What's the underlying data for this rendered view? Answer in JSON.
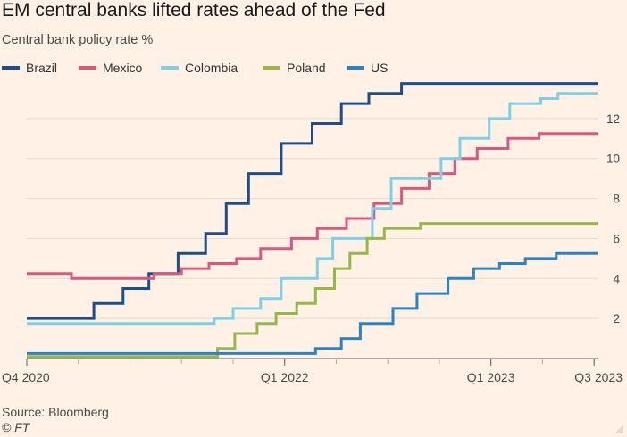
{
  "chart_data": {
    "type": "line",
    "title": "EM central banks lifted rates ahead of the Fed",
    "subtitle": "Central bank policy rate %",
    "xlabel": "",
    "ylabel": "",
    "ylim": [
      0,
      13.6
    ],
    "y_ticks": [
      2,
      4,
      6,
      8,
      10,
      12
    ],
    "x_ticks": [
      {
        "label": "Q4 2020",
        "t": 0
      },
      {
        "label": "Q1 2022",
        "t": 15
      },
      {
        "label": "Q1 2023",
        "t": 27
      },
      {
        "label": "Q3 2023",
        "t": 33
      }
    ],
    "xlim": [
      0,
      33.2
    ],
    "x_unit": "months since Oct 2020",
    "series": [
      {
        "name": "Brazil",
        "color": "#1e4d8c",
        "points": [
          [
            0,
            2.0
          ],
          [
            3.9,
            2.0
          ],
          [
            3.9,
            2.75
          ],
          [
            5.6,
            2.75
          ],
          [
            5.6,
            3.5
          ],
          [
            7.1,
            3.5
          ],
          [
            7.1,
            4.25
          ],
          [
            8.8,
            4.25
          ],
          [
            8.8,
            5.25
          ],
          [
            10.4,
            5.25
          ],
          [
            10.4,
            6.25
          ],
          [
            11.6,
            6.25
          ],
          [
            11.6,
            7.75
          ],
          [
            12.9,
            7.75
          ],
          [
            12.9,
            9.25
          ],
          [
            14.8,
            9.25
          ],
          [
            14.8,
            10.75
          ],
          [
            16.6,
            10.75
          ],
          [
            16.6,
            11.75
          ],
          [
            18.3,
            11.75
          ],
          [
            18.3,
            12.75
          ],
          [
            19.9,
            12.75
          ],
          [
            19.9,
            13.25
          ],
          [
            21.8,
            13.25
          ],
          [
            21.8,
            13.75
          ],
          [
            33.2,
            13.75
          ]
        ]
      },
      {
        "name": "Mexico",
        "color": "#d9587e",
        "points": [
          [
            0,
            4.25
          ],
          [
            2.6,
            4.25
          ],
          [
            2.6,
            4.0
          ],
          [
            7.4,
            4.0
          ],
          [
            7.4,
            4.25
          ],
          [
            9.0,
            4.25
          ],
          [
            9.0,
            4.5
          ],
          [
            10.6,
            4.5
          ],
          [
            10.6,
            4.75
          ],
          [
            12.2,
            4.75
          ],
          [
            12.2,
            5.0
          ],
          [
            13.6,
            5.0
          ],
          [
            13.6,
            5.5
          ],
          [
            15.4,
            5.5
          ],
          [
            15.4,
            6.0
          ],
          [
            16.9,
            6.0
          ],
          [
            16.9,
            6.5
          ],
          [
            18.6,
            6.5
          ],
          [
            18.6,
            7.0
          ],
          [
            20.2,
            7.0
          ],
          [
            20.2,
            7.75
          ],
          [
            21.8,
            7.75
          ],
          [
            21.8,
            8.5
          ],
          [
            23.4,
            8.5
          ],
          [
            23.4,
            9.25
          ],
          [
            24.9,
            9.25
          ],
          [
            24.9,
            10.0
          ],
          [
            26.2,
            10.0
          ],
          [
            26.2,
            10.5
          ],
          [
            28.0,
            10.5
          ],
          [
            28.0,
            11.0
          ],
          [
            29.8,
            11.0
          ],
          [
            29.8,
            11.25
          ],
          [
            33.2,
            11.25
          ]
        ]
      },
      {
        "name": "Colombia",
        "color": "#7ed0e6",
        "points": [
          [
            0,
            1.75
          ],
          [
            10.9,
            1.75
          ],
          [
            10.9,
            2.0
          ],
          [
            12.0,
            2.0
          ],
          [
            12.0,
            2.5
          ],
          [
            13.6,
            2.5
          ],
          [
            13.6,
            3.0
          ],
          [
            14.8,
            3.0
          ],
          [
            14.8,
            4.0
          ],
          [
            16.9,
            4.0
          ],
          [
            16.9,
            5.0
          ],
          [
            17.8,
            5.0
          ],
          [
            17.8,
            6.0
          ],
          [
            20.1,
            6.0
          ],
          [
            20.1,
            7.5
          ],
          [
            21.2,
            7.5
          ],
          [
            21.2,
            9.0
          ],
          [
            24.1,
            9.0
          ],
          [
            24.1,
            10.0
          ],
          [
            25.2,
            10.0
          ],
          [
            25.2,
            11.0
          ],
          [
            26.9,
            11.0
          ],
          [
            26.9,
            12.0
          ],
          [
            28.1,
            12.0
          ],
          [
            28.1,
            12.75
          ],
          [
            29.9,
            12.75
          ],
          [
            29.9,
            13.0
          ],
          [
            30.9,
            13.0
          ],
          [
            30.9,
            13.25
          ],
          [
            33.2,
            13.25
          ]
        ]
      },
      {
        "name": "Poland",
        "color": "#96b84a",
        "points": [
          [
            0,
            0.1
          ],
          [
            11.1,
            0.1
          ],
          [
            11.1,
            0.5
          ],
          [
            12.1,
            0.5
          ],
          [
            12.1,
            1.25
          ],
          [
            13.4,
            1.25
          ],
          [
            13.4,
            1.75
          ],
          [
            14.5,
            1.75
          ],
          [
            14.5,
            2.25
          ],
          [
            15.7,
            2.25
          ],
          [
            15.7,
            2.75
          ],
          [
            16.8,
            2.75
          ],
          [
            16.8,
            3.5
          ],
          [
            17.9,
            3.5
          ],
          [
            17.9,
            4.5
          ],
          [
            18.8,
            4.5
          ],
          [
            18.8,
            5.25
          ],
          [
            19.8,
            5.25
          ],
          [
            19.8,
            6.0
          ],
          [
            20.8,
            6.0
          ],
          [
            20.8,
            6.5
          ],
          [
            22.9,
            6.5
          ],
          [
            22.9,
            6.75
          ],
          [
            33.2,
            6.75
          ]
        ]
      },
      {
        "name": "US",
        "color": "#2b82c4",
        "points": [
          [
            0,
            0.25
          ],
          [
            16.8,
            0.25
          ],
          [
            16.8,
            0.5
          ],
          [
            18.3,
            0.5
          ],
          [
            18.3,
            1.0
          ],
          [
            19.4,
            1.0
          ],
          [
            19.4,
            1.75
          ],
          [
            21.3,
            1.75
          ],
          [
            21.3,
            2.5
          ],
          [
            22.7,
            2.5
          ],
          [
            22.7,
            3.25
          ],
          [
            24.5,
            3.25
          ],
          [
            24.5,
            4.0
          ],
          [
            26.0,
            4.0
          ],
          [
            26.0,
            4.5
          ],
          [
            27.5,
            4.5
          ],
          [
            27.5,
            4.75
          ],
          [
            29.0,
            4.75
          ],
          [
            29.0,
            5.0
          ],
          [
            30.8,
            5.0
          ],
          [
            30.8,
            5.25
          ],
          [
            33.2,
            5.25
          ]
        ]
      }
    ],
    "source": "Source: Bloomberg",
    "credit": "© FT"
  }
}
